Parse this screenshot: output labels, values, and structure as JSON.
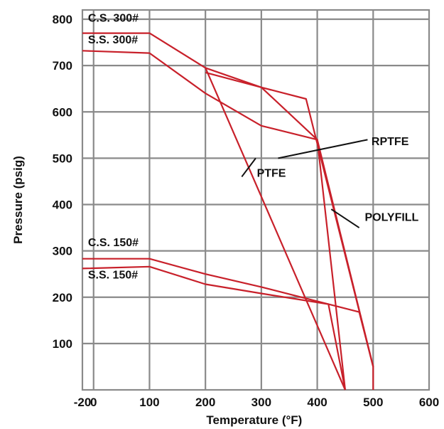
{
  "chart_data": {
    "type": "line",
    "xlabel": "Temperature (°F)",
    "ylabel": "Pressure (psig)",
    "xlim": [
      -20,
      600
    ],
    "ylim": [
      0,
      820
    ],
    "x_grid": [
      0,
      100,
      200,
      300,
      400,
      500
    ],
    "y_grid": [
      100,
      200,
      300,
      400,
      500,
      600,
      700,
      800
    ],
    "x_ticks": [
      {
        "value": -20,
        "label": "-20"
      },
      {
        "value": 0,
        "label": "0"
      },
      {
        "value": 100,
        "label": "100"
      },
      {
        "value": 200,
        "label": "200"
      },
      {
        "value": 300,
        "label": "300"
      },
      {
        "value": 400,
        "label": "400"
      },
      {
        "value": 500,
        "label": "500"
      },
      {
        "value": 600,
        "label": "600"
      }
    ],
    "y_ticks": [
      {
        "value": 100,
        "label": "100"
      },
      {
        "value": 200,
        "label": "200"
      },
      {
        "value": 300,
        "label": "300"
      },
      {
        "value": 400,
        "label": "400"
      },
      {
        "value": 500,
        "label": "500"
      },
      {
        "value": 600,
        "label": "600"
      },
      {
        "value": 700,
        "label": "700"
      },
      {
        "value": 800,
        "label": "800"
      }
    ],
    "grid": true,
    "line_color": "#c8202a",
    "series": [
      {
        "points": [
          [
            -20,
            770
          ],
          [
            100,
            770
          ],
          [
            200,
            695
          ],
          [
            450,
            0
          ]
        ]
      },
      {
        "points": [
          [
            -20,
            732
          ],
          [
            100,
            727
          ],
          [
            200,
            640
          ],
          [
            300,
            570
          ],
          [
            400,
            540
          ],
          [
            450,
            0
          ]
        ]
      },
      {
        "points": [
          [
            200,
            685
          ],
          [
            300,
            653
          ],
          [
            400,
            540
          ],
          [
            500,
            50
          ],
          [
            500,
            0
          ]
        ]
      },
      {
        "points": [
          [
            200,
            695
          ],
          [
            300,
            653
          ],
          [
            380,
            628
          ],
          [
            500,
            50
          ]
        ]
      },
      {
        "points": [
          [
            -20,
            283
          ],
          [
            100,
            283
          ],
          [
            200,
            250
          ],
          [
            300,
            222
          ],
          [
            475,
            168
          ],
          [
            500,
            50
          ]
        ]
      },
      {
        "points": [
          [
            -20,
            262
          ],
          [
            100,
            266
          ],
          [
            200,
            228
          ],
          [
            300,
            208
          ],
          [
            420,
            185
          ],
          [
            450,
            0
          ]
        ]
      }
    ],
    "annotations": [
      {
        "text": "C.S. 300#",
        "anchor_x": -10,
        "anchor_y": 795
      },
      {
        "text": "S.S. 300#",
        "anchor_x": -10,
        "anchor_y": 748
      },
      {
        "text": "C.S. 150#",
        "anchor_x": -10,
        "anchor_y": 310
      },
      {
        "text": "S.S. 150#",
        "anchor_x": -10,
        "anchor_y": 240
      },
      {
        "text": "RPTFE",
        "anchor_x": 497,
        "anchor_y": 528,
        "leader_from": [
          330,
          500
        ],
        "leader_to": [
          490,
          540
        ]
      },
      {
        "text": "PTFE",
        "anchor_x": 292,
        "anchor_y": 460,
        "leader_from": [
          265,
          460
        ],
        "leader_to": [
          290,
          500
        ]
      },
      {
        "text": "POLYFILL",
        "anchor_x": 485,
        "anchor_y": 365,
        "leader_from": [
          425,
          390
        ],
        "leader_to": [
          475,
          350
        ]
      }
    ]
  }
}
